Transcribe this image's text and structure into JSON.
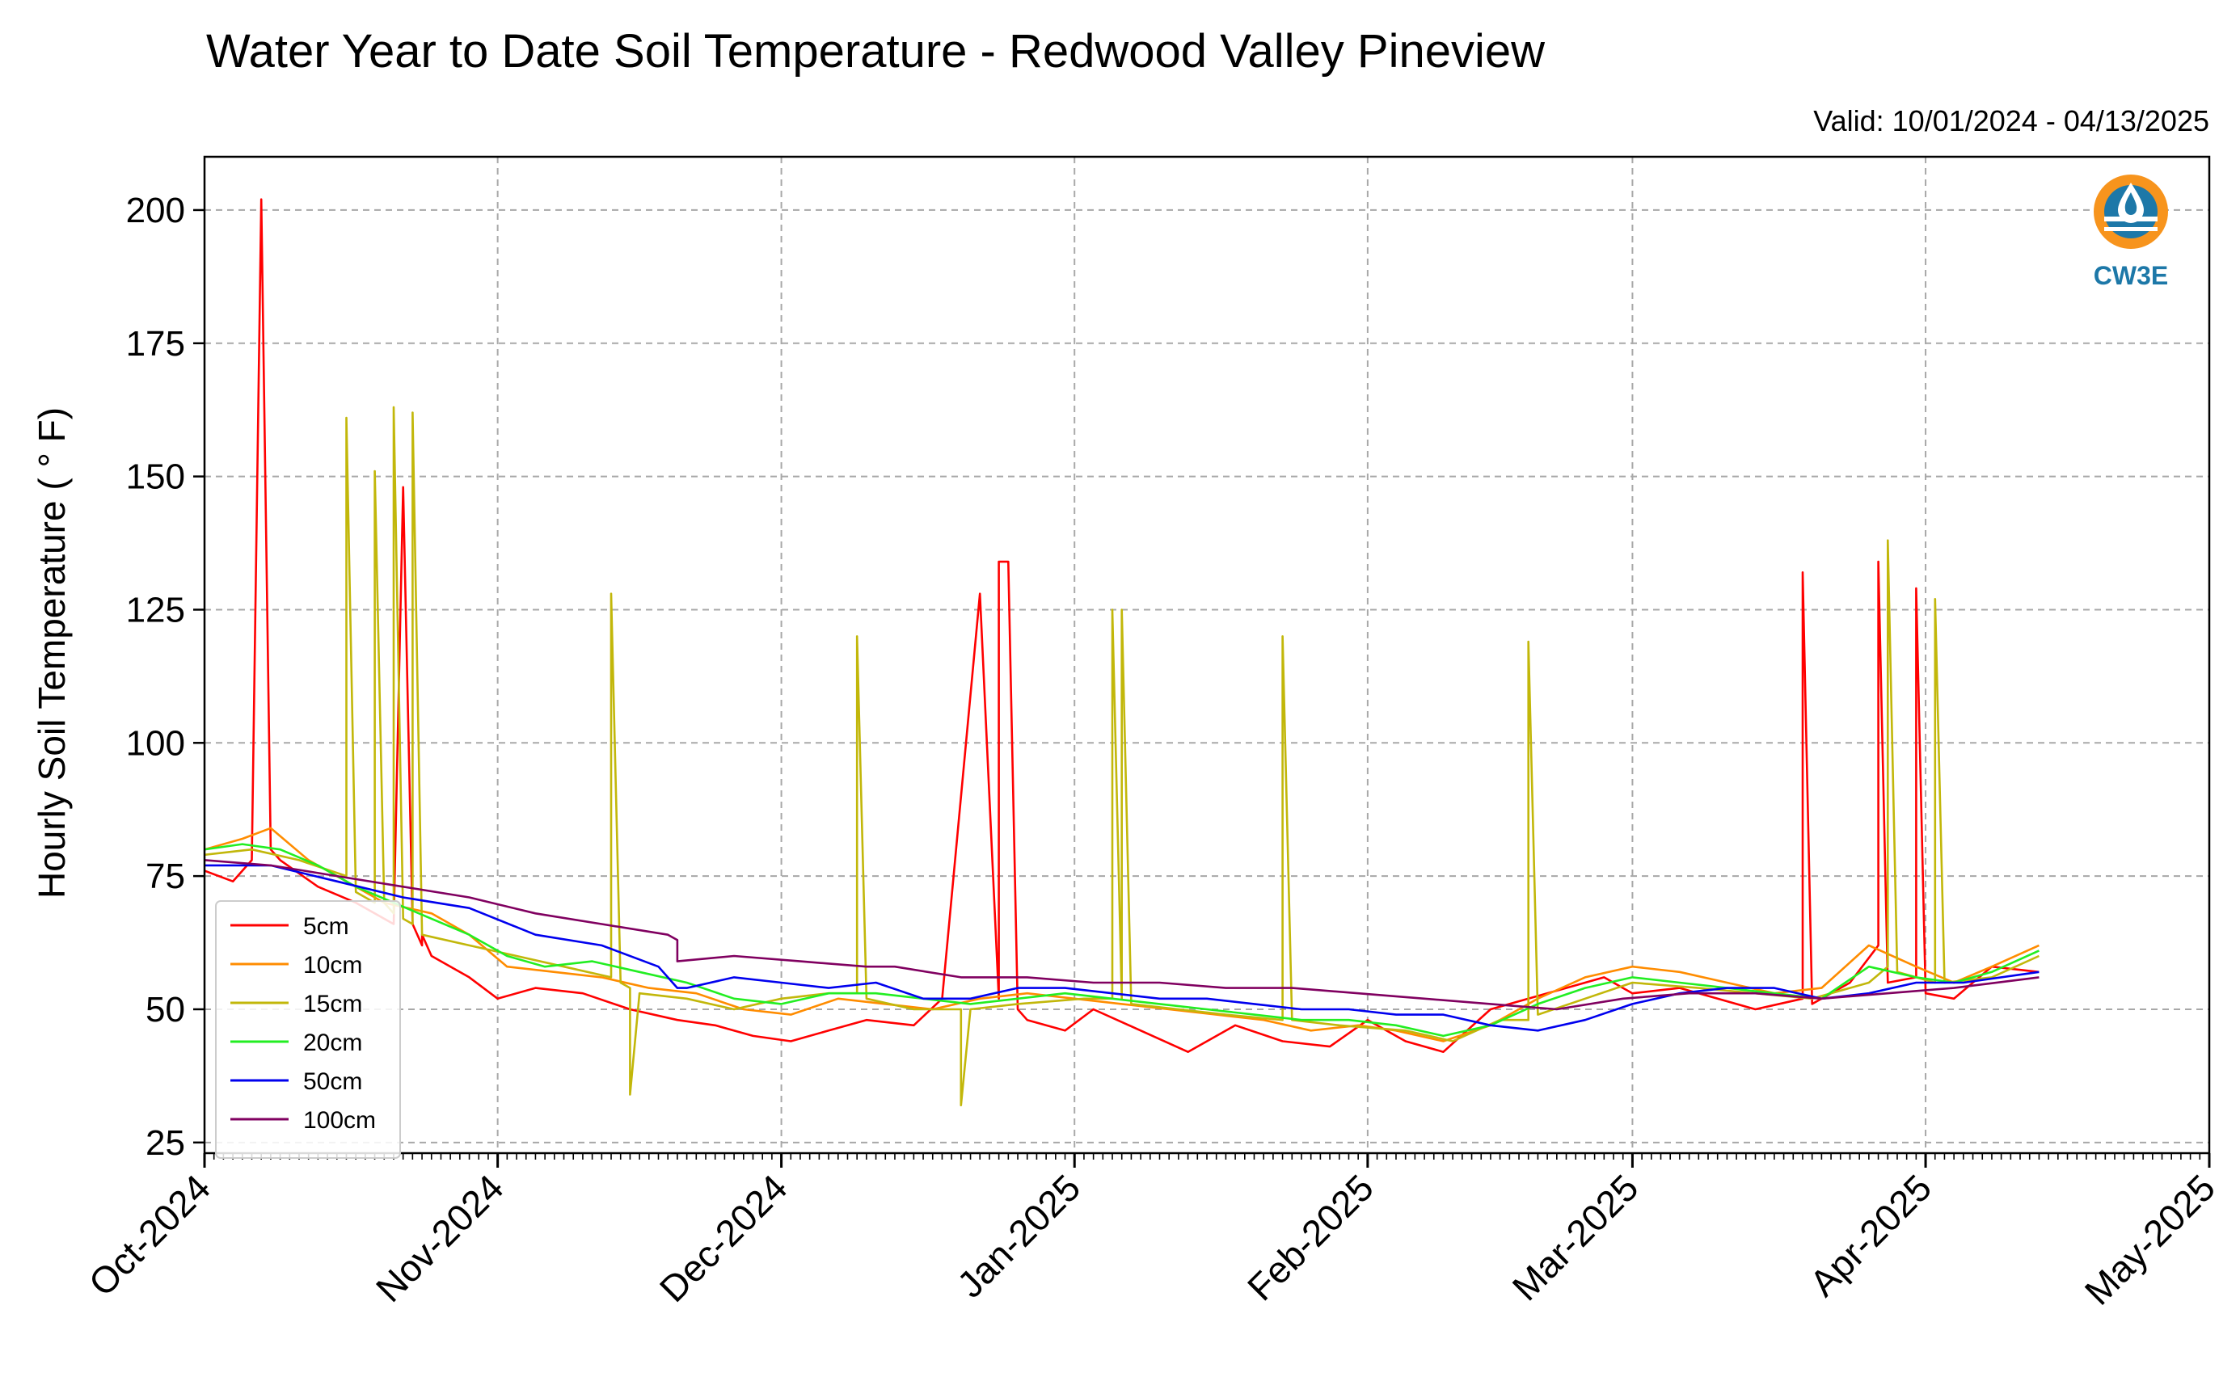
{
  "chart_data": {
    "type": "line",
    "title": "Water Year to Date Soil Temperature - Redwood Valley Pineview",
    "subtitle": "Valid: 10/01/2024 - 04/13/2025",
    "xlabel": "",
    "ylabel": "Hourly Soil Temperature ( ° F)",
    "xlim": [
      "2024-10-01",
      "2025-05-01"
    ],
    "ylim": [
      23,
      210
    ],
    "x_ticks": [
      "Oct-2024",
      "Nov-2024",
      "Dec-2024",
      "Jan-2025",
      "Feb-2025",
      "Mar-2025",
      "Apr-2025",
      "May-2025"
    ],
    "x_tick_dates": [
      "2024-10-01",
      "2024-11-01",
      "2024-12-01",
      "2025-01-01",
      "2025-02-01",
      "2025-03-01",
      "2025-04-01",
      "2025-05-01"
    ],
    "y_ticks": [
      25,
      50,
      75,
      100,
      125,
      150,
      175,
      200
    ],
    "grid": true,
    "legend_position": "lower-left",
    "logo_text": "CW3E",
    "series": [
      {
        "name": "5cm",
        "color": "#ff0000",
        "x": [
          "2024-10-01",
          "2024-10-04",
          "2024-10-06",
          "2024-10-07",
          "2024-10-07",
          "2024-10-08",
          "2024-10-09",
          "2024-10-13",
          "2024-10-17",
          "2024-10-21",
          "2024-10-22",
          "2024-10-22",
          "2024-10-23",
          "2024-10-24",
          "2024-10-24",
          "2024-10-25",
          "2024-10-29",
          "2024-11-01",
          "2024-11-05",
          "2024-11-10",
          "2024-11-15",
          "2024-11-20",
          "2024-11-24",
          "2024-11-28",
          "2024-12-02",
          "2024-12-06",
          "2024-12-10",
          "2024-12-15",
          "2024-12-18",
          "2024-12-22",
          "2024-12-24",
          "2024-12-24",
          "2024-12-25",
          "2024-12-26",
          "2024-12-26",
          "2024-12-27",
          "2024-12-31",
          "2025-01-03",
          "2025-01-08",
          "2025-01-13",
          "2025-01-18",
          "2025-01-23",
          "2025-01-28",
          "2025-02-01",
          "2025-02-05",
          "2025-02-09",
          "2025-02-14",
          "2025-02-18",
          "2025-02-22",
          "2025-02-26",
          "2025-03-01",
          "2025-03-06",
          "2025-03-10",
          "2025-03-14",
          "2025-03-19",
          "2025-03-19",
          "2025-03-20",
          "2025-03-24",
          "2025-03-27",
          "2025-03-27",
          "2025-03-28",
          "2025-03-31",
          "2025-03-31",
          "2025-04-01",
          "2025-04-04",
          "2025-04-08",
          "2025-04-13"
        ],
        "values": [
          76,
          74,
          78,
          202,
          202,
          80,
          78,
          73,
          70,
          66,
          148,
          148,
          66,
          62,
          64,
          60,
          56,
          52,
          54,
          53,
          50,
          48,
          47,
          45,
          44,
          46,
          48,
          47,
          52,
          128,
          52,
          134,
          134,
          50,
          50,
          48,
          46,
          50,
          46,
          42,
          47,
          44,
          43,
          48,
          44,
          42,
          50,
          52,
          54,
          56,
          53,
          54,
          52,
          50,
          52,
          132,
          51,
          55,
          62,
          134,
          55,
          56,
          129,
          53,
          52,
          58,
          57
        ]
      },
      {
        "name": "10cm",
        "color": "#ff8c00",
        "x": [
          "2024-10-01",
          "2024-10-05",
          "2024-10-08",
          "2024-10-12",
          "2024-10-16",
          "2024-10-20",
          "2024-10-25",
          "2024-10-29",
          "2024-11-02",
          "2024-11-07",
          "2024-11-12",
          "2024-11-17",
          "2024-11-22",
          "2024-11-27",
          "2024-12-02",
          "2024-12-07",
          "2024-12-12",
          "2024-12-17",
          "2024-12-22",
          "2024-12-27",
          "2025-01-01",
          "2025-01-06",
          "2025-01-11",
          "2025-01-16",
          "2025-01-21",
          "2025-01-26",
          "2025-01-31",
          "2025-02-04",
          "2025-02-09",
          "2025-02-14",
          "2025-02-19",
          "2025-02-24",
          "2025-03-01",
          "2025-03-06",
          "2025-03-11",
          "2025-03-16",
          "2025-03-21",
          "2025-03-26",
          "2025-03-31",
          "2025-04-04",
          "2025-04-08",
          "2025-04-13"
        ],
        "values": [
          80,
          82,
          84,
          78,
          74,
          70,
          68,
          64,
          58,
          57,
          56,
          54,
          53,
          50,
          49,
          52,
          51,
          50,
          52,
          53,
          52,
          51,
          50,
          49,
          48,
          46,
          47,
          46,
          44,
          47,
          52,
          56,
          58,
          57,
          55,
          53,
          54,
          62,
          58,
          55,
          58,
          62
        ]
      },
      {
        "name": "15cm",
        "color": "#c2b70a",
        "x": [
          "2024-10-01",
          "2024-10-06",
          "2024-10-11",
          "2024-10-16",
          "2024-10-16",
          "2024-10-17",
          "2024-10-19",
          "2024-10-19",
          "2024-10-20",
          "2024-10-21",
          "2024-10-21",
          "2024-10-22",
          "2024-10-23",
          "2024-10-23",
          "2024-10-24",
          "2024-10-29",
          "2024-11-03",
          "2024-11-08",
          "2024-11-13",
          "2024-11-13",
          "2024-11-14",
          "2024-11-15",
          "2024-11-15",
          "2024-11-16",
          "2024-11-21",
          "2024-11-26",
          "2024-12-01",
          "2024-12-06",
          "2024-12-09",
          "2024-12-09",
          "2024-12-10",
          "2024-12-15",
          "2024-12-20",
          "2024-12-20",
          "2024-12-21",
          "2024-12-26",
          "2025-01-02",
          "2025-01-05",
          "2025-01-05",
          "2025-01-06",
          "2025-01-06",
          "2025-01-07",
          "2025-01-12",
          "2025-01-17",
          "2025-01-23",
          "2025-01-23",
          "2025-01-24",
          "2025-01-29",
          "2025-02-05",
          "2025-02-10",
          "2025-02-15",
          "2025-02-18",
          "2025-02-18",
          "2025-02-19",
          "2025-02-24",
          "2025-03-01",
          "2025-03-08",
          "2025-03-14",
          "2025-03-20",
          "2025-03-26",
          "2025-03-28",
          "2025-03-28",
          "2025-03-29",
          "2025-04-02",
          "2025-04-02",
          "2025-04-03",
          "2025-04-08",
          "2025-04-13"
        ],
        "values": [
          79,
          80,
          78,
          75,
          161,
          72,
          70,
          151,
          70,
          68,
          163,
          67,
          66,
          162,
          64,
          62,
          60,
          58,
          56,
          128,
          55,
          54,
          34,
          53,
          52,
          50,
          52,
          53,
          53,
          120,
          52,
          50,
          50,
          32,
          50,
          51,
          52,
          52,
          125,
          52,
          125,
          51,
          50,
          49,
          48,
          120,
          48,
          47,
          46,
          44,
          48,
          48,
          119,
          49,
          52,
          55,
          54,
          53,
          52,
          55,
          58,
          138,
          57,
          55,
          127,
          55,
          56,
          60
        ]
      },
      {
        "name": "20cm",
        "color": "#22ee22",
        "x": [
          "2024-10-01",
          "2024-10-05",
          "2024-10-09",
          "2024-10-13",
          "2024-10-17",
          "2024-10-21",
          "2024-10-25",
          "2024-10-29",
          "2024-11-02",
          "2024-11-06",
          "2024-11-11",
          "2024-11-16",
          "2024-11-21",
          "2024-11-26",
          "2024-12-01",
          "2024-12-06",
          "2024-12-11",
          "2024-12-16",
          "2024-12-21",
          "2024-12-26",
          "2024-12-31",
          "2025-01-05",
          "2025-01-10",
          "2025-01-15",
          "2025-01-20",
          "2025-01-25",
          "2025-01-30",
          "2025-02-04",
          "2025-02-09",
          "2025-02-14",
          "2025-02-19",
          "2025-02-24",
          "2025-03-01",
          "2025-03-06",
          "2025-03-11",
          "2025-03-16",
          "2025-03-21",
          "2025-03-26",
          "2025-03-31",
          "2025-04-04",
          "2025-04-08",
          "2025-04-13"
        ],
        "values": [
          80,
          81,
          80,
          77,
          73,
          70,
          67,
          64,
          60,
          58,
          59,
          57,
          55,
          52,
          51,
          53,
          53,
          52,
          51,
          52,
          53,
          52,
          51,
          50,
          49,
          48,
          48,
          47,
          45,
          47,
          51,
          54,
          56,
          55,
          54,
          53,
          52,
          58,
          56,
          55,
          57,
          61
        ]
      },
      {
        "name": "50cm",
        "color": "#0000ee",
        "x": [
          "2024-10-01",
          "2024-10-08",
          "2024-10-15",
          "2024-10-22",
          "2024-10-29",
          "2024-11-05",
          "2024-11-12",
          "2024-11-18",
          "2024-11-20",
          "2024-11-21",
          "2024-11-26",
          "2024-12-01",
          "2024-12-06",
          "2024-12-11",
          "2024-12-16",
          "2024-12-21",
          "2024-12-26",
          "2024-12-31",
          "2025-01-05",
          "2025-01-10",
          "2025-01-15",
          "2025-01-20",
          "2025-01-25",
          "2025-01-30",
          "2025-02-04",
          "2025-02-09",
          "2025-02-14",
          "2025-02-19",
          "2025-02-24",
          "2025-03-01",
          "2025-03-06",
          "2025-03-11",
          "2025-03-16",
          "2025-03-21",
          "2025-03-26",
          "2025-03-31",
          "2025-04-05",
          "2025-04-13"
        ],
        "values": [
          77,
          77,
          74,
          71,
          69,
          64,
          62,
          58,
          54,
          54,
          56,
          55,
          54,
          55,
          52,
          52,
          54,
          54,
          53,
          52,
          52,
          51,
          50,
          50,
          49,
          49,
          47,
          46,
          48,
          51,
          53,
          54,
          54,
          52,
          53,
          55,
          55,
          57
        ]
      },
      {
        "name": "100cm",
        "color": "#800060",
        "x": [
          "2024-10-01",
          "2024-10-08",
          "2024-10-15",
          "2024-10-22",
          "2024-10-29",
          "2024-11-05",
          "2024-11-12",
          "2024-11-19",
          "2024-11-20",
          "2024-11-20",
          "2024-11-26",
          "2024-12-03",
          "2024-12-10",
          "2024-12-13",
          "2024-12-20",
          "2024-12-27",
          "2025-01-03",
          "2025-01-10",
          "2025-01-17",
          "2025-01-24",
          "2025-01-31",
          "2025-02-07",
          "2025-02-14",
          "2025-02-21",
          "2025-02-28",
          "2025-03-07",
          "2025-03-14",
          "2025-03-21",
          "2025-03-28",
          "2025-04-04",
          "2025-04-13"
        ],
        "values": [
          78,
          77,
          75,
          73,
          71,
          68,
          66,
          64,
          63,
          59,
          60,
          59,
          58,
          58,
          56,
          56,
          55,
          55,
          54,
          54,
          53,
          52,
          51,
          50,
          52,
          53,
          53,
          52,
          53,
          54,
          56
        ]
      }
    ]
  }
}
